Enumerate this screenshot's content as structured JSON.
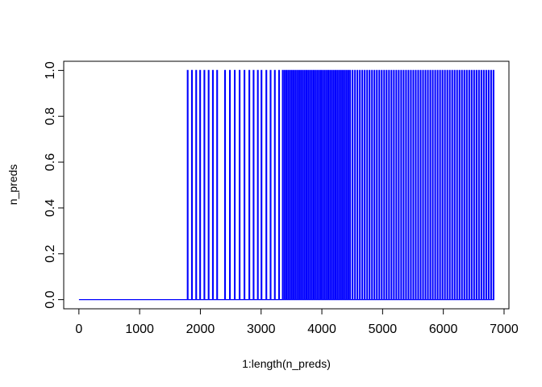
{
  "chart_data": {
    "type": "line",
    "title": "",
    "xlabel": "1:length(n_preds)",
    "ylabel": "n_preds",
    "xlim": [
      -250,
      7080
    ],
    "ylim": [
      -0.04,
      1.04
    ],
    "x_ticks": [
      0,
      1000,
      2000,
      3000,
      4000,
      5000,
      6000,
      7000
    ],
    "x_tick_labels": [
      "0",
      "1000",
      "2000",
      "3000",
      "4000",
      "5000",
      "6000",
      "7000"
    ],
    "y_ticks": [
      0.0,
      0.2,
      0.4,
      0.6,
      0.8,
      1.0
    ],
    "y_tick_labels": [
      "0.0",
      "0.2",
      "0.4",
      "0.6",
      "0.8",
      "1.0"
    ],
    "grid": false,
    "legend": "none",
    "series": [
      {
        "color": "#0000ff",
        "x_start": 1,
        "x_end": 6840,
        "baseline": 0,
        "spike_value": 1,
        "spike_positions": [
          1785,
          1855,
          1925,
          1990,
          2060,
          2130,
          2200,
          2270,
          2400,
          2480,
          2560,
          2640,
          2720,
          2800,
          2870,
          2940,
          3000,
          3080,
          3150,
          3220,
          3290,
          3350,
          3380,
          3410,
          3440,
          3470,
          3500,
          3530,
          3560,
          3590,
          3620,
          3650,
          3680,
          3710,
          3740,
          3770,
          3800,
          3830,
          3860,
          3890,
          3920,
          3950,
          3980,
          4010,
          4040,
          4070,
          4100,
          4130,
          4160,
          4190,
          4220,
          4250,
          4280,
          4310,
          4340,
          4370,
          4400,
          4430,
          4460,
          4500,
          4540,
          4580,
          4620,
          4660,
          4700,
          4740,
          4780,
          4820,
          4860,
          4900,
          4940,
          4980,
          5020,
          5060,
          5100,
          5140,
          5180,
          5220,
          5260,
          5300,
          5340,
          5380,
          5420,
          5460,
          5500,
          5540,
          5580,
          5620,
          5660,
          5700,
          5740,
          5780,
          5820,
          5860,
          5900,
          5940,
          5980,
          6020,
          6060,
          6100,
          6140,
          6180,
          6220,
          6260,
          6300,
          6340,
          6380,
          6420,
          6460,
          6500,
          6540,
          6580,
          6620,
          6660,
          6700,
          6740,
          6780,
          6820
        ]
      }
    ]
  }
}
